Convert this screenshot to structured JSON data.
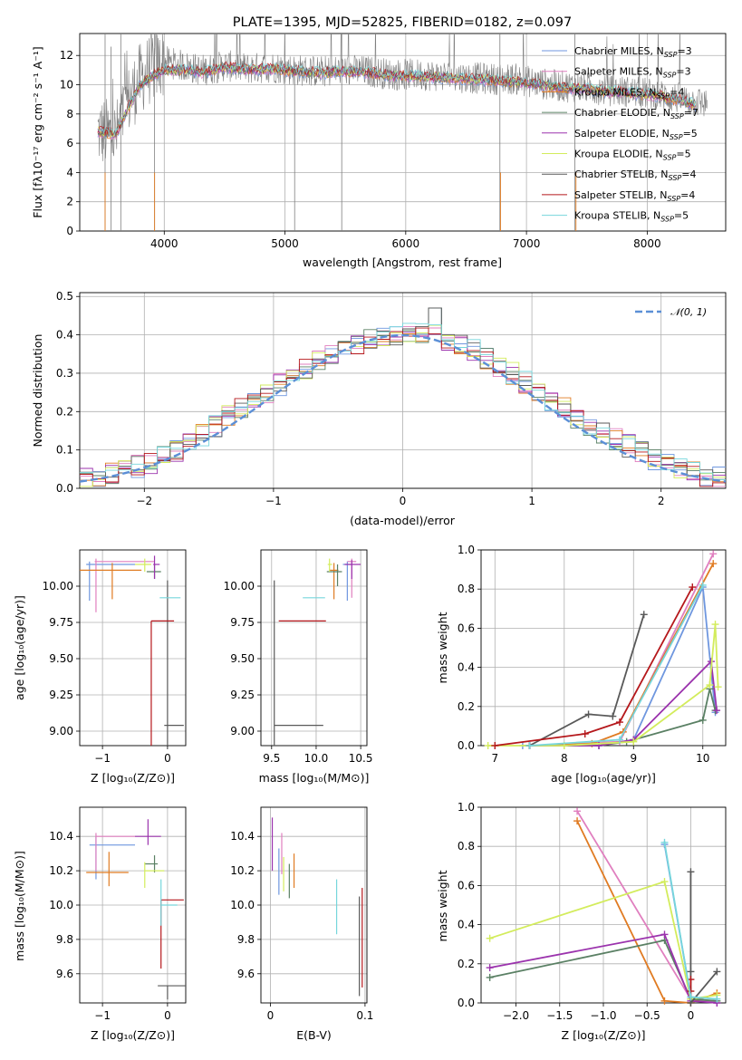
{
  "title": "PLATE=1395, MJD=52825, FIBERID=0182, z=0.097",
  "colors": {
    "Chabrier MILES": "#6f97df",
    "Salpeter MILES": "#e07fbf",
    "Kroupa MILES": "#e07b22",
    "Chabrier ELODIE": "#5a8064",
    "Salpeter ELODIE": "#9b33ad",
    "Kroupa ELODIE": "#d3ec5c",
    "Chabrier STELIB": "#595959",
    "Salpeter STELIB": "#b5171b",
    "Kroupa STELIB": "#76d6dc",
    "data": "#7f7f7f",
    "normal": "#5b8fd6"
  },
  "legend_models": [
    {
      "name": "Chabrier MILES",
      "label": "Chabrier MILES, N",
      "n": "=3"
    },
    {
      "name": "Salpeter MILES",
      "label": "Salpeter MILES, N",
      "n": "=3"
    },
    {
      "name": "Kroupa MILES",
      "label": "Kroupa MILES, N",
      "n": "=4"
    },
    {
      "name": "Chabrier ELODIE",
      "label": "Chabrier ELODIE, N",
      "n": "=7"
    },
    {
      "name": "Salpeter ELODIE",
      "label": "Salpeter ELODIE, N",
      "n": "=5"
    },
    {
      "name": "Kroupa ELODIE",
      "label": "Kroupa ELODIE, N",
      "n": "=5"
    },
    {
      "name": "Chabrier STELIB",
      "label": "Chabrier STELIB, N",
      "n": "=4"
    },
    {
      "name": "Salpeter STELIB",
      "label": "Salpeter STELIB, N",
      "n": "=4"
    },
    {
      "name": "Kroupa STELIB",
      "label": "Kroupa STELIB, N",
      "n": "=5"
    }
  ],
  "chart_data": [
    {
      "type": "line",
      "id": "spectrum",
      "xlabel": "wavelength [Angstrom, rest frame]",
      "ylabel": "Flux [fλ10⁻¹⁷ erg cm⁻² s⁻¹ A⁻¹]",
      "xlim": [
        3300,
        8650
      ],
      "ylim": [
        0,
        13.5
      ],
      "xticks": [
        4000,
        5000,
        6000,
        7000,
        8000
      ],
      "yticks": [
        0,
        2,
        4,
        6,
        8,
        10,
        12
      ],
      "series": [
        {
          "name": "data",
          "x": [
            3450,
            3600,
            3700,
            3800,
            3900,
            4000,
            4100,
            4200,
            4300,
            4400,
            4500,
            4700,
            4900,
            5100,
            5300,
            5500,
            5700,
            5900,
            6100,
            6300,
            6500,
            6700,
            6900,
            7100,
            7300,
            7500,
            7700,
            7900,
            8100,
            8300,
            8500
          ],
          "y": [
            6.8,
            6.5,
            8.8,
            10.4,
            11.2,
            11.6,
            11.4,
            11.2,
            11.0,
            11.1,
            11.3,
            11.1,
            11.2,
            11.0,
            10.9,
            11.0,
            10.9,
            10.7,
            10.7,
            10.6,
            10.5,
            10.4,
            10.4,
            10.1,
            9.9,
            9.8,
            9.6,
            9.5,
            9.3,
            9.0,
            8.7
          ]
        },
        {
          "name": "model",
          "x": [
            3450,
            3600,
            3700,
            3800,
            3900,
            4000,
            4100,
            4200,
            4300,
            4400,
            4500,
            4700,
            4900,
            5100,
            5300,
            5500,
            5700,
            5900,
            6100,
            6300,
            6500,
            6700,
            6900,
            7100,
            7300,
            7500,
            7700,
            7900,
            8100,
            8300,
            8400
          ],
          "y": [
            6.8,
            6.6,
            8.4,
            10.0,
            10.6,
            11.0,
            11.0,
            11.0,
            10.8,
            11.0,
            11.2,
            11.0,
            11.1,
            10.9,
            10.8,
            10.9,
            10.8,
            10.6,
            10.6,
            10.5,
            10.4,
            10.3,
            10.2,
            10.0,
            9.8,
            9.7,
            9.5,
            9.4,
            9.2,
            8.9,
            8.6
          ]
        }
      ]
    },
    {
      "type": "line",
      "id": "residuals",
      "xlabel": "(data-model)/error",
      "ylabel": "Normed distribution",
      "xlim": [
        -2.5,
        2.5
      ],
      "ylim": [
        0,
        0.51
      ],
      "xticks": [
        -2,
        -1,
        0,
        1,
        2
      ],
      "yticks": [
        0.0,
        0.1,
        0.2,
        0.3,
        0.4,
        0.5
      ],
      "legend": "𝒩(0, 1)",
      "bin_width": 0.1,
      "hist_envelope": {
        "x": [
          -2.45,
          -2.15,
          -1.85,
          -1.55,
          -1.25,
          -0.95,
          -0.65,
          -0.35,
          -0.05,
          0.25,
          0.55,
          0.85,
          1.15,
          1.45,
          1.75,
          2.05,
          2.35
        ],
        "y": [
          0.025,
          0.045,
          0.08,
          0.14,
          0.21,
          0.27,
          0.33,
          0.38,
          0.4,
          0.4,
          0.36,
          0.3,
          0.23,
          0.16,
          0.11,
          0.06,
          0.03
        ]
      }
    },
    {
      "type": "scatter",
      "id": "age-vs-Z",
      "xlabel": "Z [log₁₀(Z/Z⊙)]",
      "ylabel": "age  [log₁₀(age/yr)]",
      "xlim": [
        -1.35,
        0.28
      ],
      "ylim": [
        8.9,
        10.25
      ],
      "xticks": [
        -1,
        0
      ],
      "yticks": [
        9.0,
        9.25,
        9.5,
        9.75,
        10.0
      ],
      "points": [
        {
          "model": "Chabrier MILES",
          "x": -1.2,
          "y": 10.15
        },
        {
          "model": "Salpeter MILES",
          "x": -1.1,
          "y": 10.17
        },
        {
          "model": "Kroupa MILES",
          "x": -0.85,
          "y": 10.11
        },
        {
          "model": "Chabrier ELODIE",
          "x": -0.2,
          "y": 10.1
        },
        {
          "model": "Salpeter ELODIE",
          "x": -0.2,
          "y": 10.15
        },
        {
          "model": "Kroupa ELODIE",
          "x": -0.35,
          "y": 10.15
        },
        {
          "model": "Chabrier STELIB",
          "x": 0.0,
          "y": 9.04
        },
        {
          "model": "Salpeter STELIB",
          "x": -0.25,
          "y": 9.76
        },
        {
          "model": "Kroupa STELIB",
          "x": -0.1,
          "y": 9.92
        }
      ]
    },
    {
      "type": "scatter",
      "id": "age-vs-mass",
      "xlabel": "mass [log₁₀(M/M⊙)]",
      "xlim": [
        9.38,
        10.57
      ],
      "ylim": [
        8.9,
        10.25
      ],
      "xticks": [
        9.5,
        10.0,
        10.5
      ],
      "yticks": [
        9.0,
        9.25,
        9.5,
        9.75,
        10.0
      ],
      "points": [
        {
          "model": "Chabrier MILES",
          "x": 10.35,
          "y": 10.15
        },
        {
          "model": "Salpeter MILES",
          "x": 10.4,
          "y": 10.17
        },
        {
          "model": "Kroupa MILES",
          "x": 10.2,
          "y": 10.11
        },
        {
          "model": "Chabrier ELODIE",
          "x": 10.24,
          "y": 10.1
        },
        {
          "model": "Salpeter ELODIE",
          "x": 10.4,
          "y": 10.15
        },
        {
          "model": "Kroupa ELODIE",
          "x": 10.15,
          "y": 10.15
        },
        {
          "model": "Chabrier STELIB",
          "x": 9.53,
          "y": 9.04
        },
        {
          "model": "Salpeter STELIB",
          "x": 10.03,
          "y": 9.76
        },
        {
          "model": "Kroupa STELIB",
          "x": 10.0,
          "y": 9.92
        }
      ]
    },
    {
      "type": "line",
      "id": "mass-weight-vs-age",
      "xlabel": "age  [log₁₀(age/yr)]",
      "ylabel": "mass weight",
      "xlim": [
        6.8,
        10.33
      ],
      "ylim": [
        0,
        1.0
      ],
      "xticks": [
        7,
        8,
        9,
        10
      ],
      "yticks": [
        0.0,
        0.2,
        0.4,
        0.6,
        0.8,
        1.0
      ],
      "series": [
        {
          "name": "Chabrier MILES",
          "x": [
            7.4,
            8.5,
            9.0,
            10.0,
            10.18
          ],
          "y": [
            0.0,
            0.0,
            0.03,
            0.81,
            0.17
          ]
        },
        {
          "name": "Salpeter MILES",
          "x": [
            7.5,
            8.8,
            10.15
          ],
          "y": [
            0.0,
            0.02,
            0.98
          ]
        },
        {
          "name": "Kroupa MILES",
          "x": [
            7.5,
            8.4,
            8.85,
            10.15
          ],
          "y": [
            0.0,
            0.01,
            0.07,
            0.93
          ]
        },
        {
          "name": "Chabrier ELODIE",
          "x": [
            7.5,
            8.5,
            8.9,
            10.0,
            10.1,
            10.18
          ],
          "y": [
            0.0,
            0.0,
            0.02,
            0.13,
            0.29,
            0.18
          ]
        },
        {
          "name": "Salpeter ELODIE",
          "x": [
            7.5,
            8.5,
            9.0,
            10.12,
            10.2
          ],
          "y": [
            0.0,
            0.0,
            0.03,
            0.43,
            0.18
          ]
        },
        {
          "name": "Kroupa ELODIE",
          "x": [
            6.9,
            8.0,
            9.0,
            10.1,
            10.18,
            10.22
          ],
          "y": [
            0.0,
            0.0,
            0.02,
            0.31,
            0.62,
            0.3
          ]
        },
        {
          "name": "Chabrier STELIB",
          "x": [
            7.5,
            8.35,
            8.7,
            9.15
          ],
          "y": [
            0.0,
            0.16,
            0.15,
            0.67
          ]
        },
        {
          "name": "Salpeter STELIB",
          "x": [
            7.0,
            8.3,
            8.8,
            9.85
          ],
          "y": [
            0.0,
            0.06,
            0.12,
            0.81
          ]
        },
        {
          "name": "Kroupa STELIB",
          "x": [
            7.5,
            8.8,
            10.0
          ],
          "y": [
            0.0,
            0.03,
            0.82
          ]
        }
      ]
    },
    {
      "type": "scatter",
      "id": "mass-vs-Z",
      "xlabel": "Z [log₁₀(Z/Z⊙)]",
      "ylabel": "mass [log₁₀(M/M⊙)]",
      "xlim": [
        -1.35,
        0.28
      ],
      "ylim": [
        9.43,
        10.57
      ],
      "xticks": [
        -1,
        0
      ],
      "yticks": [
        9.6,
        9.8,
        10.0,
        10.2,
        10.4
      ],
      "points": [
        {
          "model": "Chabrier MILES",
          "x": -1.1,
          "y": 10.35
        },
        {
          "model": "Salpeter MILES",
          "x": -1.1,
          "y": 10.4
        },
        {
          "model": "Kroupa MILES",
          "x": -0.9,
          "y": 10.19
        },
        {
          "model": "Chabrier ELODIE",
          "x": -0.2,
          "y": 10.24
        },
        {
          "model": "Salpeter ELODIE",
          "x": -0.3,
          "y": 10.4
        },
        {
          "model": "Kroupa ELODIE",
          "x": -0.35,
          "y": 10.2
        },
        {
          "model": "Chabrier STELIB",
          "x": 0.0,
          "y": 9.53
        },
        {
          "model": "Salpeter STELIB",
          "x": -0.1,
          "y": 10.03
        },
        {
          "model": "Kroupa STELIB",
          "x": -0.1,
          "y": 10.0
        }
      ]
    },
    {
      "type": "scatter",
      "id": "mass-vs-ebv",
      "xlabel": "E(B-V)",
      "xlim": [
        -0.01,
        0.102
      ],
      "ylim": [
        9.43,
        10.57
      ],
      "xticks": [
        0.0,
        0.1
      ],
      "yticks": [
        9.6,
        9.8,
        10.0,
        10.2,
        10.4
      ],
      "points": [
        {
          "model": "Chabrier MILES",
          "x": 0.009,
          "y": 10.18
        },
        {
          "model": "Salpeter MILES",
          "x": 0.012,
          "y": 10.28
        },
        {
          "model": "Kroupa MILES",
          "x": 0.025,
          "y": 10.2
        },
        {
          "model": "Chabrier ELODIE",
          "x": 0.02,
          "y": 10.16
        },
        {
          "model": "Salpeter ELODIE",
          "x": 0.002,
          "y": 10.35
        },
        {
          "model": "Kroupa ELODIE",
          "x": 0.014,
          "y": 10.2
        },
        {
          "model": "Chabrier STELIB",
          "x": 0.094,
          "y": 9.75
        },
        {
          "model": "Salpeter STELIB",
          "x": 0.097,
          "y": 9.8
        },
        {
          "model": "Kroupa STELIB",
          "x": 0.07,
          "y": 9.99
        }
      ]
    },
    {
      "type": "line",
      "id": "mass-weight-vs-Z",
      "xlabel": "Z [log₁₀(Z/Z⊙)]",
      "ylabel": "mass weight",
      "xlim": [
        -2.4,
        0.4
      ],
      "ylim": [
        0,
        1.0
      ],
      "xticks": [
        -2.0,
        -1.5,
        -1.0,
        -0.5,
        0.0
      ],
      "yticks": [
        0.0,
        0.2,
        0.4,
        0.6,
        0.8,
        1.0
      ],
      "series": [
        {
          "name": "Chabrier MILES",
          "x": [
            -0.3,
            0.0,
            0.3
          ],
          "y": [
            0.81,
            0.03,
            0.0
          ]
        },
        {
          "name": "Salpeter MILES",
          "x": [
            -1.3,
            0.0,
            0.3
          ],
          "y": [
            0.98,
            0.02,
            0.0
          ]
        },
        {
          "name": "Kroupa MILES",
          "x": [
            -1.3,
            -0.3,
            0.0,
            0.3
          ],
          "y": [
            0.93,
            0.01,
            0.0,
            0.05
          ]
        },
        {
          "name": "Chabrier ELODIE",
          "x": [
            -2.3,
            -0.3,
            0.0,
            0.3
          ],
          "y": [
            0.13,
            0.32,
            0.02,
            0.01
          ]
        },
        {
          "name": "Salpeter ELODIE",
          "x": [
            -2.3,
            -0.3,
            0.0,
            0.3
          ],
          "y": [
            0.18,
            0.35,
            0.01,
            0.0
          ]
        },
        {
          "name": "Kroupa ELODIE",
          "x": [
            -2.3,
            -0.3,
            0.0,
            0.3
          ],
          "y": [
            0.33,
            0.62,
            0.02,
            0.04
          ]
        },
        {
          "name": "Chabrier STELIB",
          "x": [
            0.0,
            0.0,
            0.0,
            0.3
          ],
          "y": [
            0.67,
            0.16,
            0.0,
            0.16
          ]
        },
        {
          "name": "Salpeter STELIB",
          "x": [
            0.0,
            0.0
          ],
          "y": [
            0.12,
            0.06
          ]
        },
        {
          "name": "Kroupa STELIB",
          "x": [
            -0.3,
            0.0,
            0.3
          ],
          "y": [
            0.82,
            0.03,
            0.02
          ]
        }
      ]
    }
  ]
}
